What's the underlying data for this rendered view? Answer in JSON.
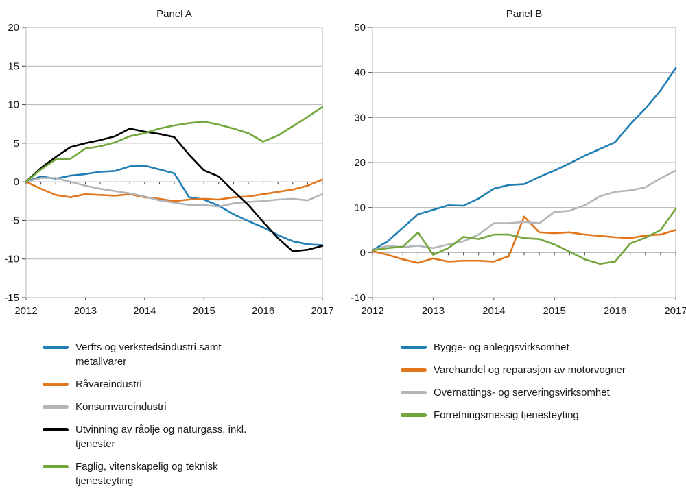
{
  "style": {
    "grid_color": "#b3b3b3",
    "axis_tick_color": "#404040",
    "text_color": "#1a1a1a",
    "background": "#ffffff"
  },
  "chart_data": [
    {
      "type": "line",
      "title": "Panel A",
      "xlabel": "",
      "ylabel": "",
      "ylim": [
        -15,
        20
      ],
      "ytick_step": 5,
      "grid": "horizontal",
      "legend_position": "below",
      "xticks": [
        2012,
        2013,
        2014,
        2015,
        2016,
        2017
      ],
      "x": [
        2012,
        2012.25,
        2012.5,
        2012.75,
        2013,
        2013.25,
        2013.5,
        2013.75,
        2014,
        2014.25,
        2014.5,
        2014.75,
        2015,
        2015.25,
        2015.5,
        2015.75,
        2016,
        2016.25,
        2016.5,
        2016.75,
        2017
      ],
      "series": [
        {
          "name": "Verfts og verkstedsindustri samt metallvarer",
          "color": "#1f7eb4",
          "values": [
            0,
            0.7,
            0.4,
            0.8,
            1.0,
            1.3,
            1.4,
            2.0,
            2.1,
            1.6,
            1.1,
            -2.0,
            -2.3,
            -3.1,
            -4.2,
            -5.1,
            -5.9,
            -6.9,
            -7.7,
            -8.1,
            -8.2
          ]
        },
        {
          "name": "Råvareindustri",
          "color": "#e2761d",
          "values": [
            0,
            -0.9,
            -1.7,
            -2.0,
            -1.6,
            -1.7,
            -1.8,
            -1.6,
            -2.0,
            -2.2,
            -2.5,
            -2.3,
            -2.2,
            -2.3,
            -2.0,
            -1.9,
            -1.6,
            -1.3,
            -1.0,
            -0.5,
            0.3
          ]
        },
        {
          "name": "Konsumvareindustri",
          "color": "#b2b6ba",
          "values": [
            0,
            0.5,
            0.5,
            0.0,
            -0.5,
            -0.9,
            -1.2,
            -1.5,
            -1.9,
            -2.4,
            -2.7,
            -3.0,
            -3.0,
            -3.2,
            -2.8,
            -2.6,
            -2.5,
            -2.3,
            -2.2,
            -2.4,
            -1.6
          ]
        },
        {
          "name": "Utvinning av råolje og naturgass, inkl. tjenester",
          "color": "#000000",
          "values": [
            0,
            1.8,
            3.2,
            4.5,
            5.0,
            5.4,
            5.9,
            6.9,
            6.5,
            6.2,
            5.8,
            3.5,
            1.5,
            0.7,
            -1.2,
            -3.0,
            -5.2,
            -7.3,
            -9.0,
            -8.8,
            -8.3
          ]
        },
        {
          "name": "Faglig, vitenskapelig og teknisk tjenesteyting",
          "color": "#72a53a",
          "values": [
            0,
            1.6,
            2.9,
            3.0,
            4.3,
            4.6,
            5.1,
            5.9,
            6.3,
            6.9,
            7.3,
            7.6,
            7.8,
            7.4,
            6.9,
            6.3,
            5.2,
            6.0,
            7.2,
            8.4,
            9.7
          ]
        }
      ]
    },
    {
      "type": "line",
      "title": "Panel B",
      "xlabel": "",
      "ylabel": "",
      "ylim": [
        -10,
        50
      ],
      "ytick_step": 10,
      "grid": "horizontal",
      "legend_position": "below",
      "xticks": [
        2012,
        2013,
        2014,
        2015,
        2016,
        2017
      ],
      "x": [
        2012,
        2012.25,
        2012.5,
        2012.75,
        2013,
        2013.25,
        2013.5,
        2013.75,
        2014,
        2014.25,
        2014.5,
        2014.75,
        2015,
        2015.25,
        2015.5,
        2015.75,
        2016,
        2016.25,
        2016.5,
        2016.75,
        2017
      ],
      "series": [
        {
          "name": "Bygge- og anleggsvirksomhet",
          "color": "#1f7eb4",
          "values": [
            0.5,
            2.5,
            5.5,
            8.5,
            9.5,
            10.5,
            10.4,
            12.0,
            14.2,
            15.0,
            15.2,
            16.8,
            18.2,
            19.8,
            21.5,
            23.0,
            24.5,
            28.5,
            32.0,
            36.0,
            41.0
          ]
        },
        {
          "name": "Varehandel og reparasjon av motorvogner",
          "color": "#e2761d",
          "values": [
            0.3,
            -0.5,
            -1.5,
            -2.3,
            -1.3,
            -2.0,
            -1.8,
            -1.8,
            -2.0,
            -0.8,
            8.0,
            4.5,
            4.3,
            4.5,
            4.0,
            3.7,
            3.4,
            3.2,
            3.8,
            4.0,
            5.0
          ]
        },
        {
          "name": "Overnattings- og serveringsvirksomhet",
          "color": "#b2b6ba",
          "values": [
            0.5,
            1.5,
            1.2,
            1.5,
            1.0,
            1.8,
            2.5,
            4.0,
            6.5,
            6.5,
            6.8,
            6.5,
            9.0,
            9.3,
            10.5,
            12.5,
            13.5,
            13.8,
            14.5,
            16.5,
            18.2
          ]
        },
        {
          "name": "Forretningsmessig tjenesteyting",
          "color": "#72a53a",
          "values": [
            0.5,
            1.0,
            1.3,
            4.5,
            -0.5,
            1.0,
            3.5,
            3.0,
            4.0,
            4.0,
            3.2,
            3.0,
            1.8,
            0.2,
            -1.5,
            -2.5,
            -2.0,
            2.0,
            3.3,
            5.0,
            9.7
          ]
        }
      ]
    }
  ]
}
